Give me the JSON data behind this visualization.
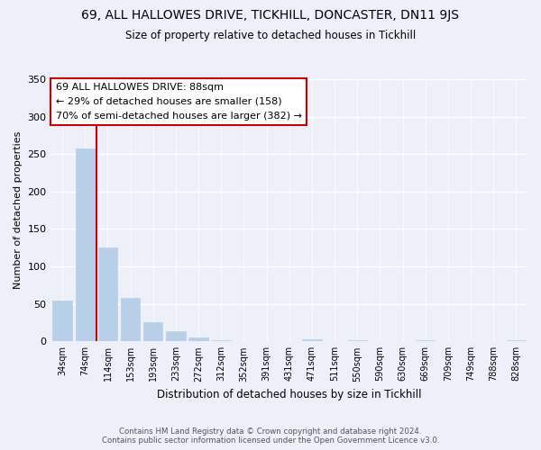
{
  "title": "69, ALL HALLOWES DRIVE, TICKHILL, DONCASTER, DN11 9JS",
  "subtitle": "Size of property relative to detached houses in Tickhill",
  "xlabel": "Distribution of detached houses by size in Tickhill",
  "ylabel": "Number of detached properties",
  "bar_labels": [
    "34sqm",
    "74sqm",
    "114sqm",
    "153sqm",
    "193sqm",
    "233sqm",
    "272sqm",
    "312sqm",
    "352sqm",
    "391sqm",
    "431sqm",
    "471sqm",
    "511sqm",
    "550sqm",
    "590sqm",
    "630sqm",
    "669sqm",
    "709sqm",
    "749sqm",
    "788sqm",
    "828sqm"
  ],
  "bar_values": [
    55,
    257,
    125,
    58,
    26,
    13,
    5,
    2,
    0,
    0,
    0,
    3,
    0,
    2,
    0,
    0,
    2,
    0,
    0,
    0,
    2
  ],
  "bar_color": "#b8cfe8",
  "vline_x": 1.5,
  "vline_color": "#cc0000",
  "annotation_lines": [
    "69 ALL HALLOWES DRIVE: 88sqm",
    "← 29% of detached houses are smaller (158)",
    "70% of semi-detached houses are larger (382) →"
  ],
  "ylim": [
    0,
    350
  ],
  "yticks": [
    0,
    50,
    100,
    150,
    200,
    250,
    300,
    350
  ],
  "footer_line1": "Contains HM Land Registry data © Crown copyright and database right 2024.",
  "footer_line2": "Contains public sector information licensed under the Open Government Licence v3.0.",
  "bg_color": "#edf0f8",
  "grid_color": "#ffffff",
  "title_fontsize": 10,
  "subtitle_fontsize": 8.5,
  "tick_fontsize": 7,
  "ylabel_fontsize": 8,
  "xlabel_fontsize": 8.5,
  "annotation_fontsize": 8
}
